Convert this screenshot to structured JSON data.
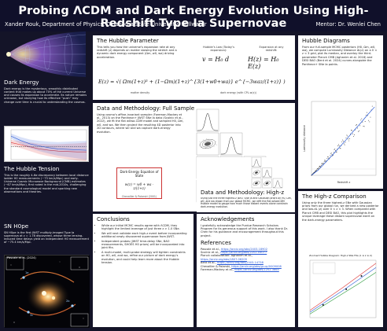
{
  "header": {
    "title": "Probing ΛCDM and Dark Energy Evolution Using High-Redshift Type Ia Supernovae",
    "authors": "Xander Rouk, Department of Physics, Oklahoma State University, Stillwater",
    "mentor": "Mentor: Dr. Wenlei Chen"
  },
  "dark_energy": {
    "heading": "Dark Energy",
    "body": "Dark energy is the mysterious, smoothly distributed content that makes up about 70% of the current Universe and causes its expansion to accelerate. Its nature remains unknown, but studying how its effective “push” may change over time is crucial to understanding the cosmos."
  },
  "hubble_tension": {
    "heading": "The Hubble Tension",
    "body": "This is the roughly 4-6σ discrepancy between local distance ladder H0 measurements (~73 km/s/Mpc) and early-Universe Cosmic Microwave Background (CMB) estimates (~67 km/s/Mpc), first noted in the mid-2010s, challenging the standard cosmological model and sparking new observations and theories."
  },
  "sn_hope": {
    "heading": "SN H0pe",
    "body": "SN H0pe is the first JWST multiply-imaged Type Ia supernova at z = 1.78 discovered, whose three lensing-induced time delays yield an independent H0 measurement of ~75.4 km/s/Mpc.",
    "image_caption": "Pascale et al. (2024)",
    "labels": [
      "1a",
      "2b",
      "3c"
    ]
  },
  "hubble_parameter": {
    "heading": "The Hubble Parameter",
    "body": "This tells you how the universe’s expansion rate at any redshift (z) depends on matter slowing the stretch and a dynamic dark energy component (Ωm, w0, wa) driving acceleration.",
    "eq_hubble_law_label": "Hubble’s Law (Today’s expansion):",
    "eq_hubble_law": "v = H₀ d",
    "eq_expansion_label": "Expansion at any redshift:",
    "eq_expansion": "H(z) = H₀ E(z)",
    "eq_ez": "E(z) = √( Ωm(1+z)³ + (1−Ωm)(1+z)^{3(1+w0+wa)} e^{−3waz/(1+z)} )",
    "label_matter": "matter density",
    "label_de": "dark energy (with CPL-w(z))"
  },
  "methodology_full": {
    "heading": "Data and Methodology: Full Sample",
    "body": "Using cosmo’s affine-invariant sampler (Foreman-Mackey et al., 2013) on the Pantheon+ JWST SNe Ia data (Scolnic et al., 2022), we fit the flat w0wa-CDM model and sampled H0, Ωm, w0, and wa. We then project the resulting 4D posterior into 2D contours, where w0 and wa capture dark-energy evolution.",
    "box_title": "Dark-Energy Equation of State",
    "box_eq": "w(z) = w0 + wa · z/(1+z)",
    "box_caption": "Chevallier & Polarski (2001)"
  },
  "methodology_high_z": {
    "heading": "Data and Methodology: High-z",
    "body": "Using just the three highest-z JWST SNe Ia and Gaussian priors on H0, Ωm, w0, and wa drawn from our global MCMC, we refit the flat-w0waCDM Hubble model to gauge how much those distant events alone constrain dark-energy evolution."
  },
  "hubble_diagrams": {
    "heading": "Hubble Diagrams",
    "body": "From our full-sample MCMC posteriors (H0, Ωm, w0, wa), we compute Luminosity Distance dL(z) on a 0 < z < 3 grid, plot its median, and overlay the third-parameter Planck CMB (Aghanim et al. 2018) and DESI BAO (Bent et al. 2024) curves alongside the Pantheon+ SNe Ia points."
  },
  "high_z_comparison": {
    "heading": "The High-z Comparison",
    "body": "Using only the three highest-z SNe with Gaussian priors from our global run, we derived a new posterior and low-dL (z) over 0 < z < 3. When compared with Planck CMB and DESI BAO, this plot highlights the unique leverage these distant supernovae exert on the dark-energy parameters.",
    "plot_title": "Zoomed Hubble Diagram: High-z SNe Fits (1 ≤ z ≤ 2)"
  },
  "conclusions": {
    "heading": "Conclusions",
    "bullets": [
      "While our initial MCMC results agree with ΛCDM, they highlight the limited leverage of just three z > 1.0 SNe.",
      "We will next validate each high-z event before incorporating additional newly discovered supernovae from JWST.",
      "Independent probes (JWST time-delay SNe, BAO measurements, SHOES H0 priors) will be incorporated into joint fits.",
      "A multi-model, multi-probe strategy will tighten constraints on H0, w0, and wa, refine our picture of dark energy’s evolution, and could help learn more about the Hubble tension."
    ]
  },
  "acknowledgements": {
    "heading": "Acknowledgements",
    "body": "I gratefully acknowledge the Purdue Research Scholars Program for its generous support of this work. I also thank Dr. Chen for his guidance and encouragement throughout this project."
  },
  "references": {
    "heading": "References",
    "items": [
      {
        "text": "Pascale et al., ",
        "link": "https://arxiv.org/abs/2403.18902"
      },
      {
        "text": "Scolnic et al., ",
        "link": "https://arxiv.org/abs/2202.04077"
      },
      {
        "text": "Planck collaboration: Aghanim et al., ",
        "link": "https://arxiv.org/abs/1807.06209"
      },
      {
        "text": "Bent et al., ",
        "link": "https://arxiv.org/abs/2503.14738"
      },
      {
        "text": "Chevallier & Polarski, ",
        "link": "https://arxiv.org/abs/gr-qc/0009008"
      },
      {
        "text": "Foreman-Mackey et al., ",
        "link": "https://arxiv.org/abs/1202.3665"
      }
    ]
  },
  "chart_data": [
    {
      "type": "line",
      "title": "",
      "xlabel": "Redshift z",
      "ylabel": "Luminosity distance",
      "series": [
        {
          "name": "",
          "x": [
            0.0,
            0.25,
            0.5,
            0.75,
            1.0,
            1.25,
            1.5,
            1.75,
            2.0,
            2.25
          ],
          "values": [
            0,
            1.2,
            2.8,
            4.4,
            6.1,
            7.8,
            9.6,
            11.3,
            13.1,
            14.8
          ]
        }
      ]
    },
    {
      "type": "line",
      "title": "Zoomed Hubble Diagram: High-z SNe Fits (1 ≤ z ≤ 2)",
      "series": [
        {
          "name": "",
          "x": [
            1.0,
            1.25,
            1.5,
            1.75,
            2.0
          ],
          "values": [
            6.4,
            8.2,
            10.0,
            11.9,
            13.8
          ]
        },
        {
          "name": "",
          "x": [
            1.0,
            1.25,
            1.5,
            1.75,
            2.0
          ],
          "values": [
            6.7,
            8.6,
            10.5,
            12.5,
            14.5
          ]
        },
        {
          "name": "",
          "x": [
            1.0,
            1.25,
            1.5,
            1.75,
            2.0
          ],
          "values": [
            6.1,
            7.8,
            9.5,
            11.2,
            13.0
          ]
        }
      ],
      "points": [
        [
          1.2,
          7.6
        ],
        [
          1.55,
          10.2
        ],
        [
          1.78,
          12.4
        ]
      ]
    },
    {
      "type": "line",
      "title": "",
      "series": [
        {
          "name": "",
          "x": [
            0.0,
            0.25,
            0.5,
            0.75,
            1.0,
            1.25,
            1.5,
            1.75,
            2.0
          ],
          "values": [
            -0.9,
            -0.95,
            -1.0,
            -1.05,
            -1.08,
            -1.1,
            -1.11,
            -1.12,
            -1.12
          ]
        },
        {
          "name": "",
          "x": [
            0.0,
            0.25,
            0.5,
            0.75,
            1.0,
            1.25,
            1.5,
            1.75,
            2.0
          ],
          "values": [
            -1.0,
            -1.0,
            -1.0,
            -1.0,
            -1.0,
            -1.0,
            -1.0,
            -1.0,
            -1.0
          ]
        },
        {
          "name": "",
          "x": [
            0.0,
            0.25,
            0.5,
            0.75,
            1.0,
            1.25,
            1.5,
            1.75,
            2.0
          ],
          "values": [
            -0.75,
            -0.85,
            -0.93,
            -0.98,
            -1.02,
            -1.05,
            -1.06,
            -1.07,
            -1.08
          ]
        }
      ]
    }
  ],
  "colors": {
    "background": "#141428",
    "accent_blue": "#2a5bd7",
    "accent_red": "#d33"
  }
}
